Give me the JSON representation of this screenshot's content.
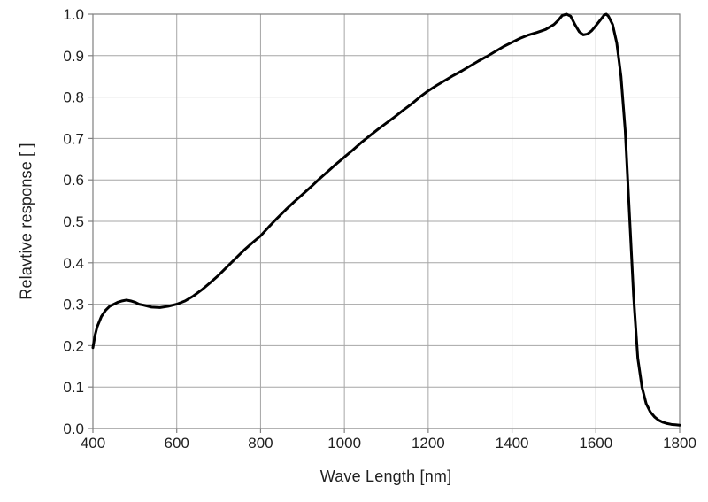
{
  "chart_data": {
    "type": "line",
    "title": "",
    "xlabel": "Wave Length [nm]",
    "ylabel": "Relavtive response [ ]",
    "xlim": [
      400,
      1800
    ],
    "ylim": [
      0.0,
      1.0
    ],
    "x_ticks": [
      400,
      600,
      800,
      1000,
      1200,
      1400,
      1600,
      1800
    ],
    "y_ticks": [
      0.0,
      0.1,
      0.2,
      0.3,
      0.4,
      0.5,
      0.6,
      0.7,
      0.8,
      0.9,
      1.0
    ],
    "grid": true,
    "legend": "none",
    "line_color": "#000000",
    "grid_color": "#a6a6a6",
    "border_color": "#808080",
    "text_color": "#1f1f1f",
    "series": [
      {
        "name": "relative response",
        "points": [
          [
            400,
            0.195
          ],
          [
            405,
            0.225
          ],
          [
            410,
            0.245
          ],
          [
            420,
            0.27
          ],
          [
            430,
            0.285
          ],
          [
            440,
            0.295
          ],
          [
            450,
            0.3
          ],
          [
            460,
            0.305
          ],
          [
            470,
            0.308
          ],
          [
            480,
            0.31
          ],
          [
            490,
            0.308
          ],
          [
            500,
            0.305
          ],
          [
            510,
            0.3
          ],
          [
            520,
            0.298
          ],
          [
            540,
            0.293
          ],
          [
            560,
            0.292
          ],
          [
            580,
            0.295
          ],
          [
            600,
            0.3
          ],
          [
            620,
            0.308
          ],
          [
            640,
            0.32
          ],
          [
            660,
            0.335
          ],
          [
            680,
            0.352
          ],
          [
            700,
            0.37
          ],
          [
            720,
            0.39
          ],
          [
            740,
            0.41
          ],
          [
            760,
            0.43
          ],
          [
            780,
            0.448
          ],
          [
            800,
            0.465
          ],
          [
            820,
            0.487
          ],
          [
            840,
            0.508
          ],
          [
            860,
            0.528
          ],
          [
            880,
            0.547
          ],
          [
            900,
            0.565
          ],
          [
            920,
            0.583
          ],
          [
            940,
            0.602
          ],
          [
            960,
            0.62
          ],
          [
            980,
            0.638
          ],
          [
            1000,
            0.655
          ],
          [
            1020,
            0.672
          ],
          [
            1040,
            0.69
          ],
          [
            1060,
            0.706
          ],
          [
            1080,
            0.722
          ],
          [
            1100,
            0.737
          ],
          [
            1120,
            0.752
          ],
          [
            1140,
            0.768
          ],
          [
            1160,
            0.783
          ],
          [
            1180,
            0.8
          ],
          [
            1200,
            0.815
          ],
          [
            1220,
            0.828
          ],
          [
            1240,
            0.84
          ],
          [
            1260,
            0.852
          ],
          [
            1280,
            0.863
          ],
          [
            1300,
            0.875
          ],
          [
            1320,
            0.887
          ],
          [
            1340,
            0.898
          ],
          [
            1360,
            0.91
          ],
          [
            1380,
            0.922
          ],
          [
            1400,
            0.932
          ],
          [
            1420,
            0.942
          ],
          [
            1440,
            0.95
          ],
          [
            1460,
            0.956
          ],
          [
            1480,
            0.963
          ],
          [
            1500,
            0.975
          ],
          [
            1510,
            0.985
          ],
          [
            1520,
            0.997
          ],
          [
            1530,
            1.0
          ],
          [
            1540,
            0.995
          ],
          [
            1550,
            0.975
          ],
          [
            1560,
            0.958
          ],
          [
            1570,
            0.95
          ],
          [
            1580,
            0.952
          ],
          [
            1590,
            0.96
          ],
          [
            1600,
            0.972
          ],
          [
            1610,
            0.985
          ],
          [
            1620,
            0.998
          ],
          [
            1625,
            1.0
          ],
          [
            1630,
            0.995
          ],
          [
            1640,
            0.975
          ],
          [
            1650,
            0.93
          ],
          [
            1660,
            0.85
          ],
          [
            1670,
            0.72
          ],
          [
            1680,
            0.52
          ],
          [
            1690,
            0.32
          ],
          [
            1700,
            0.17
          ],
          [
            1710,
            0.1
          ],
          [
            1720,
            0.06
          ],
          [
            1730,
            0.04
          ],
          [
            1740,
            0.028
          ],
          [
            1750,
            0.02
          ],
          [
            1760,
            0.015
          ],
          [
            1770,
            0.012
          ],
          [
            1780,
            0.01
          ],
          [
            1790,
            0.009
          ],
          [
            1800,
            0.008
          ]
        ]
      }
    ]
  }
}
